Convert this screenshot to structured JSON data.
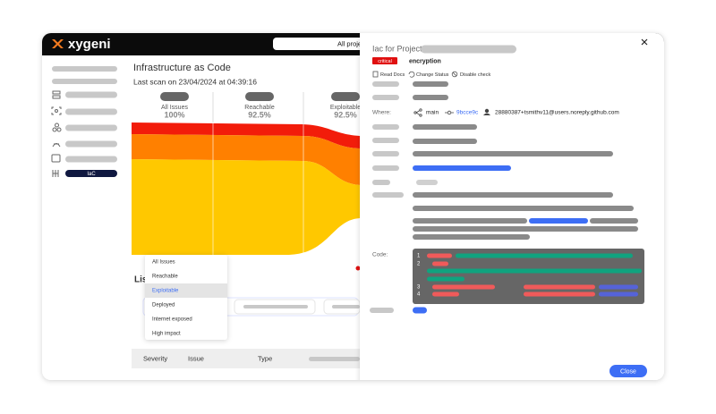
{
  "header": {
    "logo": "xygeni",
    "project_selector": "All projects"
  },
  "sidebar": {
    "active_item": "IaC"
  },
  "main": {
    "title": "Infrastructure as Code",
    "last_scan": "Last scan on 23/04/2024 at 04:39:16",
    "funnel": [
      {
        "label": "All Issues",
        "percent": "100%"
      },
      {
        "label": "Reachable",
        "percent": "92.5%"
      },
      {
        "label": "Exploitable",
        "percent": "92.5%"
      }
    ],
    "list_title": "Lis",
    "filter_options": [
      "All Issues",
      "Reachable",
      "Exploitable",
      "Deployed",
      "Internet exposed",
      "High impact"
    ],
    "table_headers": [
      "Severity",
      "Issue",
      "Type"
    ]
  },
  "panel": {
    "title": "Iac for Project",
    "severity": "critical",
    "check": "encryption",
    "actions": [
      "Read Docs",
      "Change Status",
      "Disable check"
    ],
    "where_label": "Where:",
    "branch": "main",
    "commit": "9bcce9c",
    "author": "28880387+tsmithv11@users.noreply.github.com",
    "code_label": "Code:",
    "line_numbers": [
      1,
      2,
      3,
      4
    ],
    "close_button": "Close"
  }
}
